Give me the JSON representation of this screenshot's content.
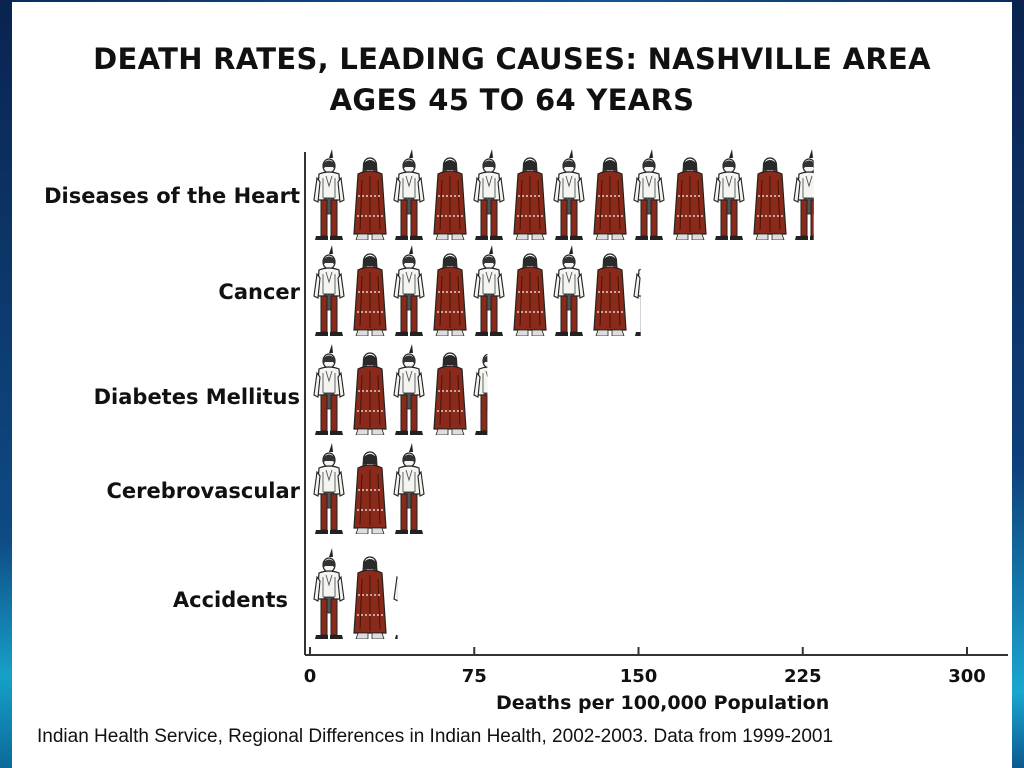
{
  "title_line1": "DEATH RATES, LEADING CAUSES: NASHVILLE AREA",
  "title_line2": "AGES 45 TO 64 YEARS",
  "source": "Indian Health Service, Regional Differences in Indian Health, 2002-2003. Data from 1999-2001",
  "colors": {
    "dress_red": "#8a2a1a",
    "shirt_white": "#f4f4f0",
    "outline": "#222222",
    "axis": "#333333"
  },
  "icon": "native-figure-icon",
  "chart_data": {
    "type": "bar",
    "orientation": "horizontal",
    "categories": [
      "Diseases of the Heart",
      "Cancer",
      "Diabetes Mellitus",
      "Cerebrovascular",
      "Accidents"
    ],
    "values": [
      230,
      151,
      81,
      56,
      40
    ],
    "xlabel": "Deaths per 100,000 Population",
    "xticks": [
      0,
      75,
      150,
      225,
      300
    ],
    "xlim": [
      0,
      320
    ],
    "units_per_icon": 18.5
  }
}
